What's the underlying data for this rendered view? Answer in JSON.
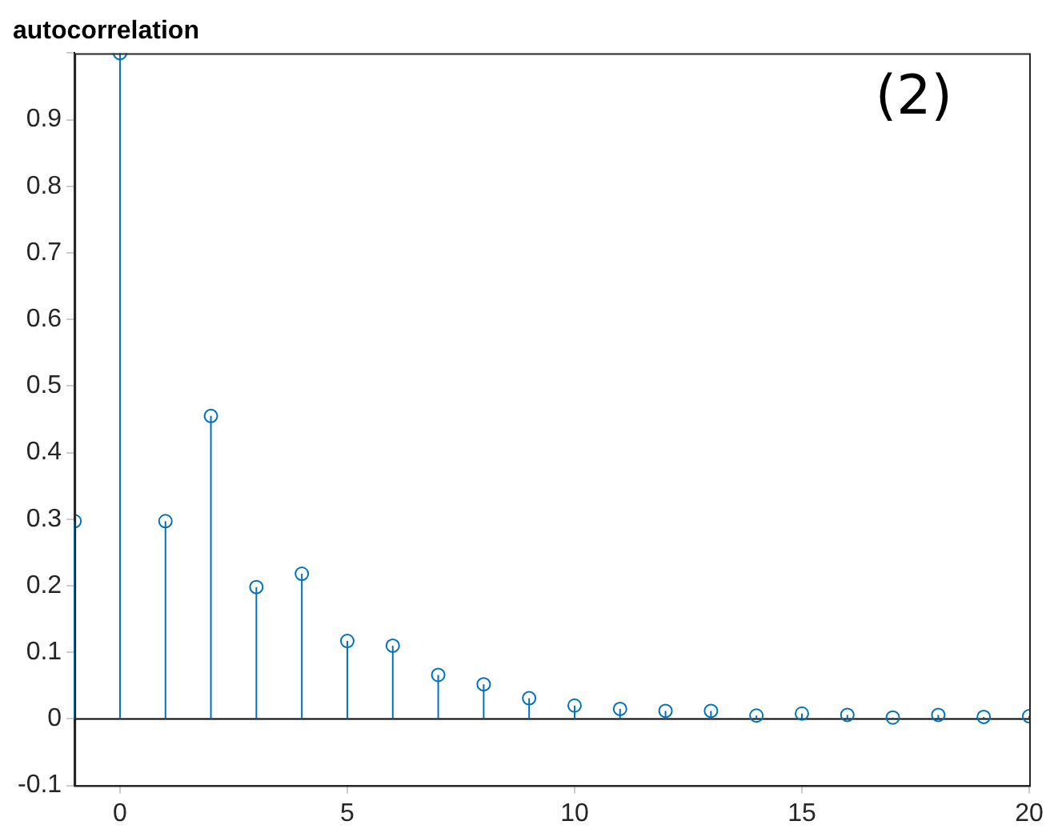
{
  "chart_data": {
    "type": "lollipop",
    "title": "autocorrelation",
    "annotations": [
      "(2)"
    ],
    "x": [
      -1,
      0,
      1,
      2,
      3,
      4,
      5,
      6,
      7,
      8,
      9,
      10,
      11,
      12,
      13,
      14,
      15,
      16,
      17,
      18,
      19,
      20
    ],
    "series": [
      {
        "color": "#0072bd",
        "values": [
          0.297,
          1.0,
          0.297,
          0.455,
          0.198,
          0.218,
          0.117,
          0.11,
          0.066,
          0.052,
          0.031,
          0.02,
          0.015,
          0.012,
          0.012,
          0.005,
          0.008,
          0.006,
          0.002,
          0.006,
          0.003,
          0.004
        ]
      }
    ],
    "xlim": [
      -1,
      20
    ],
    "xticks": [
      0,
      5,
      10,
      15,
      20
    ],
    "ylim": [
      -0.1,
      1
    ],
    "yticks": [
      -0.1,
      0,
      0.1,
      0.2,
      0.3,
      0.4,
      0.5,
      0.6,
      0.7,
      0.8,
      0.9,
      {
        "value": 1,
        "label": null
      }
    ],
    "ref_lines": [
      {
        "axis": "y",
        "value": 0,
        "color": "#000000"
      }
    ],
    "marker": "circle",
    "grid": false,
    "legend": false
  }
}
